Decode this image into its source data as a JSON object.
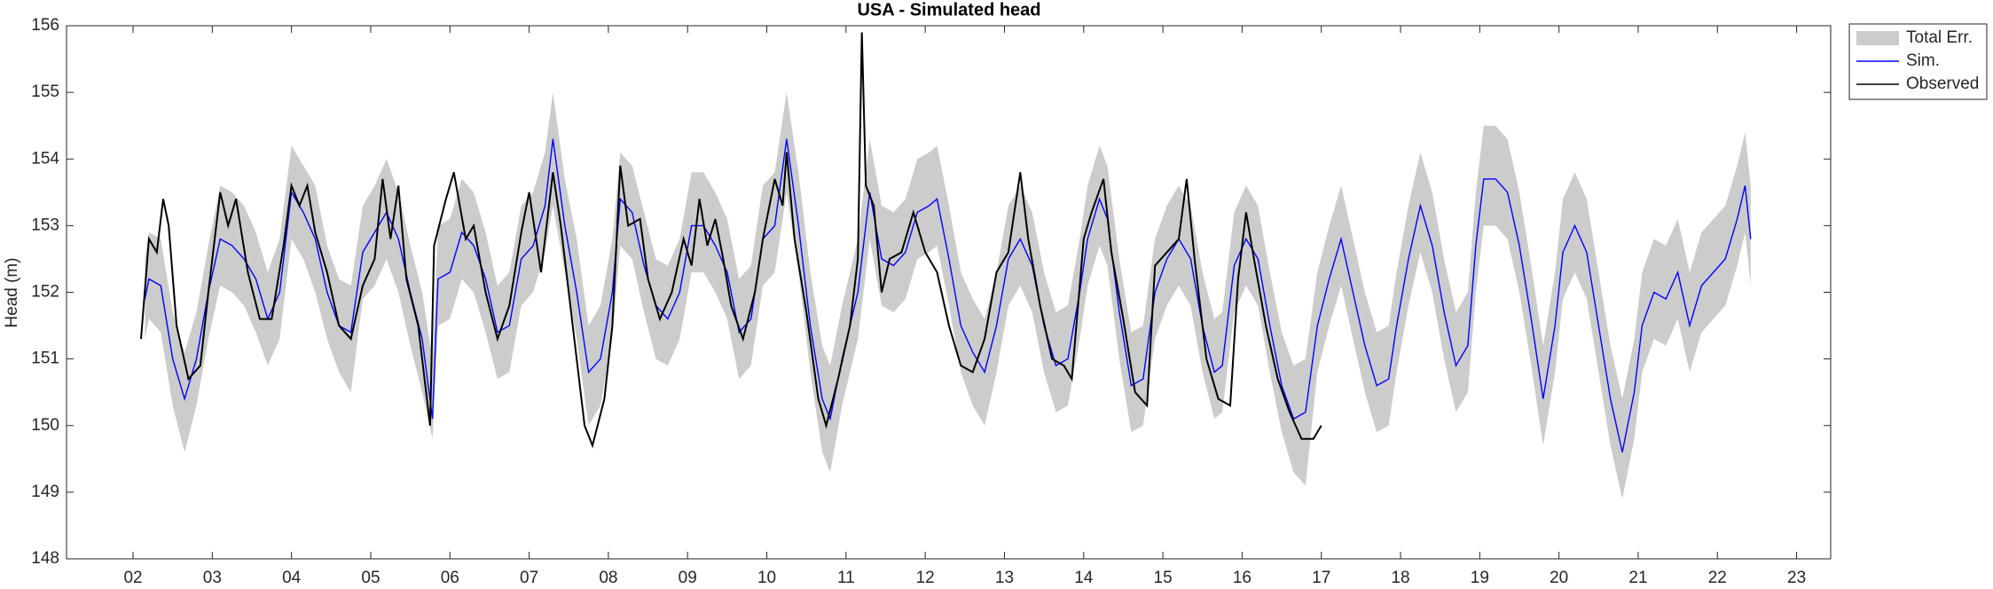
{
  "chart_data": {
    "type": "line",
    "title": "USA - Simulated head",
    "y_label": "Head (m)",
    "xlim": [
      1.16,
      23.43
    ],
    "ylim": [
      148,
      156
    ],
    "xticks": [
      {
        "value": 2,
        "label": "02"
      },
      {
        "value": 3,
        "label": "03"
      },
      {
        "value": 4,
        "label": "04"
      },
      {
        "value": 5,
        "label": "05"
      },
      {
        "value": 6,
        "label": "06"
      },
      {
        "value": 7,
        "label": "07"
      },
      {
        "value": 8,
        "label": "08"
      },
      {
        "value": 9,
        "label": "09"
      },
      {
        "value": 10,
        "label": "10"
      },
      {
        "value": 11,
        "label": "11"
      },
      {
        "value": 12,
        "label": "12"
      },
      {
        "value": 13,
        "label": "13"
      },
      {
        "value": 14,
        "label": "14"
      },
      {
        "value": 15,
        "label": "15"
      },
      {
        "value": 16,
        "label": "16"
      },
      {
        "value": 17,
        "label": "17"
      },
      {
        "value": 18,
        "label": "18"
      },
      {
        "value": 19,
        "label": "19"
      },
      {
        "value": 20,
        "label": "20"
      },
      {
        "value": 21,
        "label": "21"
      },
      {
        "value": 22,
        "label": "22"
      },
      {
        "value": 23,
        "label": "23"
      }
    ],
    "yticks": [
      148,
      149,
      150,
      151,
      152,
      153,
      154,
      155,
      156
    ],
    "legend": "outside-top-right",
    "x": [
      2.15,
      2.2,
      2.35,
      2.5,
      2.65,
      2.8,
      2.95,
      3.1,
      3.25,
      3.4,
      3.55,
      3.7,
      3.85,
      4.0,
      4.15,
      4.3,
      4.45,
      4.6,
      4.75,
      4.9,
      5.05,
      5.2,
      5.35,
      5.5,
      5.65,
      5.78,
      5.85,
      6.0,
      6.15,
      6.3,
      6.45,
      6.6,
      6.75,
      6.9,
      7.05,
      7.2,
      7.3,
      7.45,
      7.6,
      7.75,
      7.9,
      8.05,
      8.15,
      8.3,
      8.45,
      8.6,
      8.75,
      8.9,
      9.05,
      9.2,
      9.35,
      9.5,
      9.65,
      9.8,
      9.95,
      10.1,
      10.25,
      10.4,
      10.55,
      10.7,
      10.8,
      10.95,
      11.05,
      11.15,
      11.3,
      11.45,
      11.6,
      11.75,
      11.9,
      12.05,
      12.15,
      12.3,
      12.45,
      12.6,
      12.75,
      12.9,
      13.05,
      13.2,
      13.35,
      13.5,
      13.65,
      13.8,
      13.95,
      14.05,
      14.2,
      14.3,
      14.45,
      14.6,
      14.75,
      14.9,
      15.05,
      15.2,
      15.35,
      15.5,
      15.65,
      15.75,
      15.9,
      16.05,
      16.2,
      16.35,
      16.5,
      16.65,
      16.8,
      16.95,
      17.1,
      17.25,
      17.4,
      17.55,
      17.7,
      17.85,
      17.95,
      18.1,
      18.25,
      18.4,
      18.55,
      18.7,
      18.85,
      18.95,
      19.05,
      19.2,
      19.35,
      19.5,
      19.65,
      19.8,
      19.95,
      20.05,
      20.2,
      20.35,
      20.5,
      20.65,
      20.8,
      20.95,
      21.05,
      21.2,
      21.35,
      21.5,
      21.65,
      21.8,
      21.95,
      22.1,
      22.25,
      22.35,
      22.42
    ],
    "series": [
      {
        "name": "Total Err.",
        "kind": "band",
        "color": "#cccccc",
        "lower": [
          151.3,
          151.6,
          151.4,
          150.3,
          149.6,
          150.3,
          151.3,
          152.1,
          152.0,
          151.8,
          151.4,
          150.9,
          151.3,
          152.8,
          152.5,
          152.0,
          151.3,
          150.8,
          150.5,
          151.9,
          152.1,
          152.5,
          152.0,
          151.2,
          150.5,
          149.8,
          151.5,
          151.6,
          152.2,
          152.0,
          151.4,
          150.7,
          150.8,
          151.8,
          152.0,
          152.6,
          153.3,
          152.3,
          151.3,
          150.0,
          150.3,
          151.3,
          152.7,
          152.5,
          151.7,
          151.0,
          150.9,
          151.3,
          152.3,
          152.3,
          152.0,
          151.6,
          150.7,
          150.9,
          152.1,
          152.3,
          153.5,
          152.3,
          150.8,
          149.6,
          149.3,
          150.3,
          150.8,
          151.3,
          152.8,
          151.8,
          151.7,
          151.9,
          152.5,
          152.6,
          152.7,
          151.8,
          150.8,
          150.3,
          150.0,
          150.8,
          151.8,
          152.1,
          151.7,
          150.8,
          150.2,
          150.3,
          151.3,
          152.1,
          152.7,
          152.4,
          151.0,
          149.9,
          150.0,
          151.3,
          151.8,
          152.1,
          151.8,
          150.8,
          150.1,
          150.2,
          151.7,
          152.1,
          151.8,
          150.8,
          149.9,
          149.3,
          149.1,
          150.8,
          151.5,
          152.1,
          151.3,
          150.5,
          149.9,
          150.0,
          150.8,
          151.8,
          152.6,
          152.0,
          151.0,
          150.2,
          150.5,
          152.0,
          153.0,
          153.0,
          152.8,
          152.0,
          150.9,
          149.7,
          150.8,
          151.9,
          152.3,
          151.9,
          150.8,
          149.7,
          148.9,
          149.8,
          150.8,
          151.3,
          151.2,
          151.6,
          150.8,
          151.4,
          151.6,
          151.8,
          152.4,
          152.9,
          152.1
        ],
        "upper": [
          152.5,
          152.9,
          152.8,
          151.7,
          151.1,
          151.7,
          152.7,
          153.6,
          153.5,
          153.3,
          152.9,
          152.3,
          152.8,
          154.2,
          153.9,
          153.6,
          152.7,
          152.2,
          152.1,
          153.3,
          153.6,
          154.0,
          153.5,
          152.7,
          152.0,
          151.0,
          153.0,
          153.1,
          153.7,
          153.5,
          152.9,
          152.1,
          152.3,
          153.3,
          153.5,
          154.1,
          155.0,
          153.7,
          152.8,
          151.5,
          151.8,
          152.8,
          154.1,
          153.9,
          153.2,
          152.5,
          152.4,
          152.8,
          153.8,
          153.8,
          153.5,
          153.1,
          152.2,
          152.4,
          153.6,
          153.8,
          155.0,
          153.8,
          152.3,
          151.2,
          150.9,
          151.8,
          152.3,
          152.8,
          154.3,
          153.3,
          153.2,
          153.4,
          154.0,
          154.1,
          154.2,
          153.3,
          152.3,
          151.9,
          151.6,
          152.3,
          153.3,
          153.6,
          153.2,
          152.3,
          151.7,
          151.8,
          152.8,
          153.6,
          154.2,
          153.9,
          152.5,
          151.4,
          151.5,
          152.8,
          153.3,
          153.6,
          153.3,
          152.3,
          151.6,
          151.7,
          153.2,
          153.6,
          153.3,
          152.3,
          151.4,
          150.9,
          151.0,
          152.3,
          153.0,
          153.6,
          152.8,
          152.0,
          151.4,
          151.5,
          152.3,
          153.3,
          154.1,
          153.5,
          152.5,
          151.7,
          152.0,
          153.5,
          154.5,
          154.5,
          154.3,
          153.5,
          152.4,
          151.2,
          152.3,
          153.4,
          153.8,
          153.4,
          152.3,
          151.2,
          150.4,
          151.3,
          152.3,
          152.8,
          152.7,
          153.1,
          152.3,
          152.9,
          153.1,
          153.3,
          153.9,
          154.4,
          153.6
        ]
      },
      {
        "name": "Sim.",
        "color": "#0000ff",
        "values": [
          151.9,
          152.2,
          152.1,
          151.0,
          150.4,
          151.0,
          152.0,
          152.8,
          152.7,
          152.5,
          152.2,
          151.6,
          152.0,
          153.5,
          153.2,
          152.8,
          152.0,
          151.5,
          151.4,
          152.6,
          152.9,
          153.2,
          152.8,
          152.0,
          151.3,
          150.1,
          152.2,
          152.3,
          152.9,
          152.7,
          152.2,
          151.4,
          151.5,
          152.5,
          152.7,
          153.3,
          154.3,
          153.0,
          152.0,
          150.8,
          151.0,
          152.0,
          153.4,
          153.2,
          152.4,
          151.8,
          151.6,
          152.0,
          153.0,
          153.0,
          152.7,
          152.3,
          151.4,
          151.6,
          152.8,
          153.0,
          154.3,
          153.0,
          151.5,
          150.4,
          150.1,
          151.0,
          151.5,
          152.0,
          153.5,
          152.5,
          152.4,
          152.6,
          153.2,
          153.3,
          153.4,
          152.5,
          151.5,
          151.1,
          150.8,
          151.5,
          152.5,
          152.8,
          152.4,
          151.5,
          150.9,
          151.0,
          152.0,
          152.8,
          153.4,
          153.1,
          151.7,
          150.6,
          150.7,
          152.0,
          152.5,
          152.8,
          152.5,
          151.5,
          150.8,
          150.9,
          152.4,
          152.8,
          152.5,
          151.5,
          150.6,
          150.1,
          150.2,
          151.5,
          152.2,
          152.8,
          152.0,
          151.2,
          150.6,
          150.7,
          151.5,
          152.5,
          153.3,
          152.7,
          151.7,
          150.9,
          151.2,
          152.7,
          153.7,
          153.7,
          153.5,
          152.7,
          151.6,
          150.4,
          151.5,
          152.6,
          153.0,
          152.6,
          151.5,
          150.4,
          149.6,
          150.5,
          151.5,
          152.0,
          151.9,
          152.3,
          151.5,
          152.1,
          152.3,
          152.5,
          153.1,
          153.6,
          152.8
        ]
      },
      {
        "name": "Observed",
        "color": "#000000",
        "x": [
          2.1,
          2.2,
          2.3,
          2.38,
          2.45,
          2.55,
          2.7,
          2.85,
          2.95,
          3.1,
          3.2,
          3.3,
          3.45,
          3.6,
          3.75,
          3.9,
          4.0,
          4.1,
          4.2,
          4.3,
          4.45,
          4.6,
          4.75,
          4.9,
          5.05,
          5.15,
          5.25,
          5.35,
          5.45,
          5.6,
          5.75,
          5.8,
          5.95,
          6.05,
          6.2,
          6.3,
          6.45,
          6.6,
          6.75,
          6.9,
          7.0,
          7.15,
          7.3,
          7.4,
          7.55,
          7.7,
          7.8,
          7.95,
          8.05,
          8.15,
          8.25,
          8.4,
          8.5,
          8.65,
          8.8,
          8.95,
          9.05,
          9.15,
          9.25,
          9.35,
          9.45,
          9.55,
          9.7,
          9.85,
          9.95,
          10.1,
          10.2,
          10.25,
          10.35,
          10.5,
          10.65,
          10.75,
          10.9,
          11.05,
          11.15,
          11.2,
          11.25,
          11.35,
          11.45,
          11.55,
          11.7,
          11.85,
          12.0,
          12.15,
          12.3,
          12.45,
          12.6,
          12.75,
          12.9,
          13.05,
          13.2,
          13.3,
          13.45,
          13.6,
          13.75,
          13.85,
          14.0,
          14.1,
          14.25,
          14.35,
          14.5,
          14.65,
          14.8,
          14.9,
          15.05,
          15.2,
          15.3,
          15.4,
          15.55,
          15.7,
          15.85,
          15.95,
          16.05,
          16.15,
          16.3,
          16.45,
          16.6,
          16.75,
          16.9,
          17.0
        ],
        "values": [
          151.3,
          152.8,
          152.6,
          153.4,
          153.0,
          151.5,
          150.7,
          150.9,
          152.0,
          153.5,
          153.0,
          153.4,
          152.3,
          151.6,
          151.6,
          152.7,
          153.6,
          153.3,
          153.6,
          152.9,
          152.3,
          151.5,
          151.3,
          152.1,
          152.5,
          153.7,
          152.8,
          153.6,
          152.2,
          151.5,
          150.0,
          152.7,
          153.4,
          153.8,
          152.8,
          153.0,
          152.0,
          151.3,
          151.8,
          152.9,
          153.5,
          152.3,
          153.8,
          153.0,
          151.5,
          150.0,
          149.7,
          150.4,
          151.5,
          153.9,
          153.0,
          153.1,
          152.2,
          151.6,
          152.0,
          152.8,
          152.4,
          153.4,
          152.7,
          153.1,
          152.5,
          151.8,
          151.3,
          152.0,
          152.8,
          153.7,
          153.3,
          154.1,
          152.8,
          151.7,
          150.4,
          150.0,
          150.7,
          151.5,
          152.5,
          155.9,
          153.6,
          153.3,
          152.0,
          152.5,
          152.6,
          153.2,
          152.6,
          152.3,
          151.5,
          150.9,
          150.8,
          151.3,
          152.3,
          152.6,
          153.8,
          152.8,
          151.8,
          151.0,
          150.9,
          150.7,
          152.8,
          153.2,
          153.7,
          152.6,
          151.6,
          150.5,
          150.3,
          152.4,
          152.6,
          152.8,
          153.7,
          152.5,
          151.0,
          150.4,
          150.3,
          152.2,
          153.2,
          152.5,
          151.5,
          150.7,
          150.2,
          149.8,
          149.8,
          150.0
        ]
      }
    ]
  }
}
